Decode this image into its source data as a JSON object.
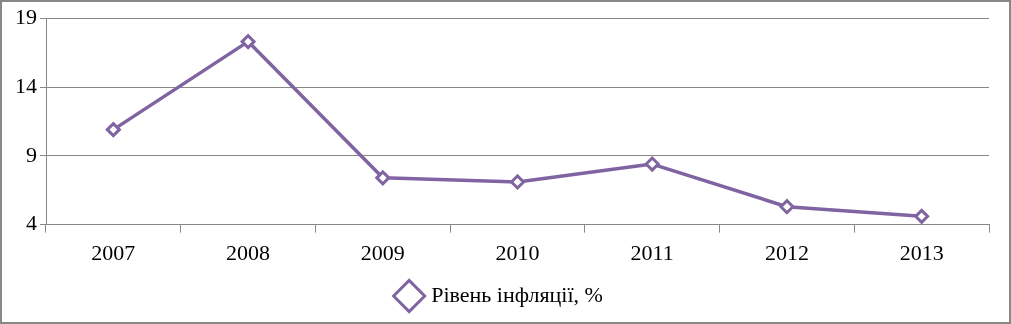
{
  "chart_data": {
    "type": "line",
    "categories": [
      "2007",
      "2008",
      "2009",
      "2010",
      "2011",
      "2012",
      "2013"
    ],
    "series": [
      {
        "name": "Рівень інфляції, %",
        "color": "#8064a2",
        "values": [
          10.9,
          17.3,
          7.4,
          7.1,
          8.4,
          5.3,
          4.6
        ]
      }
    ],
    "ylim": [
      4,
      19
    ],
    "yticks": [
      4,
      9,
      14,
      19
    ],
    "grid": "y",
    "legend": "bottom",
    "marker": "diamond",
    "line_style": "solid"
  }
}
